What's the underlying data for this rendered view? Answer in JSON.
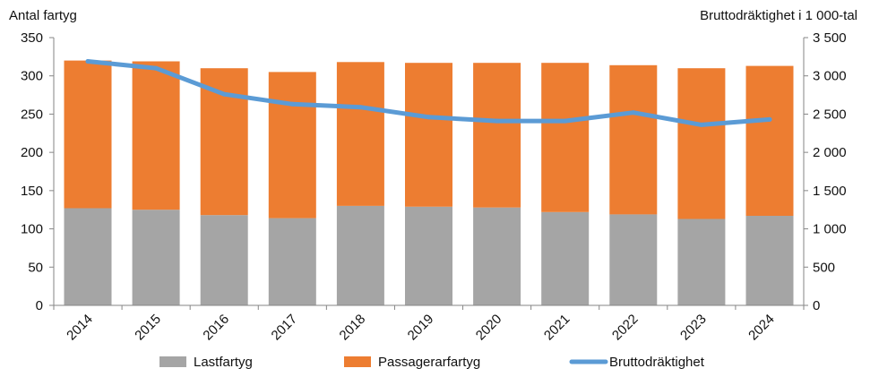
{
  "chart_data": {
    "type": "bar",
    "stacked": true,
    "categories": [
      "2014",
      "2015",
      "2016",
      "2017",
      "2018",
      "2019",
      "2020",
      "2021",
      "2022",
      "2023",
      "2024"
    ],
    "series": [
      {
        "name": "Lastfartyg",
        "axis": "left",
        "color": "#A5A5A5",
        "values": [
          127,
          125,
          118,
          114,
          130,
          129,
          128,
          122,
          119,
          113,
          117
        ]
      },
      {
        "name": "Passagerarfartyg",
        "axis": "left",
        "color": "#ED7D31",
        "values": [
          193,
          194,
          192,
          191,
          188,
          188,
          189,
          195,
          195,
          197,
          196
        ]
      },
      {
        "name": "Bruttodräktighet",
        "type": "line",
        "axis": "right",
        "color": "#5B9BD5",
        "values": [
          3190,
          3100,
          2760,
          2630,
          2590,
          2460,
          2410,
          2410,
          2520,
          2360,
          2430
        ]
      }
    ],
    "ylabel_left": "Antal fartyg",
    "ylabel_right": "Bruttodräktighet i 1 000-tal",
    "ylim_left": [
      0,
      350
    ],
    "ylim_right": [
      0,
      3500
    ],
    "yticks_left": [
      "0",
      "50",
      "100",
      "150",
      "200",
      "250",
      "300",
      "350"
    ],
    "yticks_right": [
      "0",
      "500",
      "1 000",
      "1 500",
      "2 000",
      "2 500",
      "3 000",
      "3 500"
    ],
    "grid": false,
    "legend_position": "bottom"
  }
}
